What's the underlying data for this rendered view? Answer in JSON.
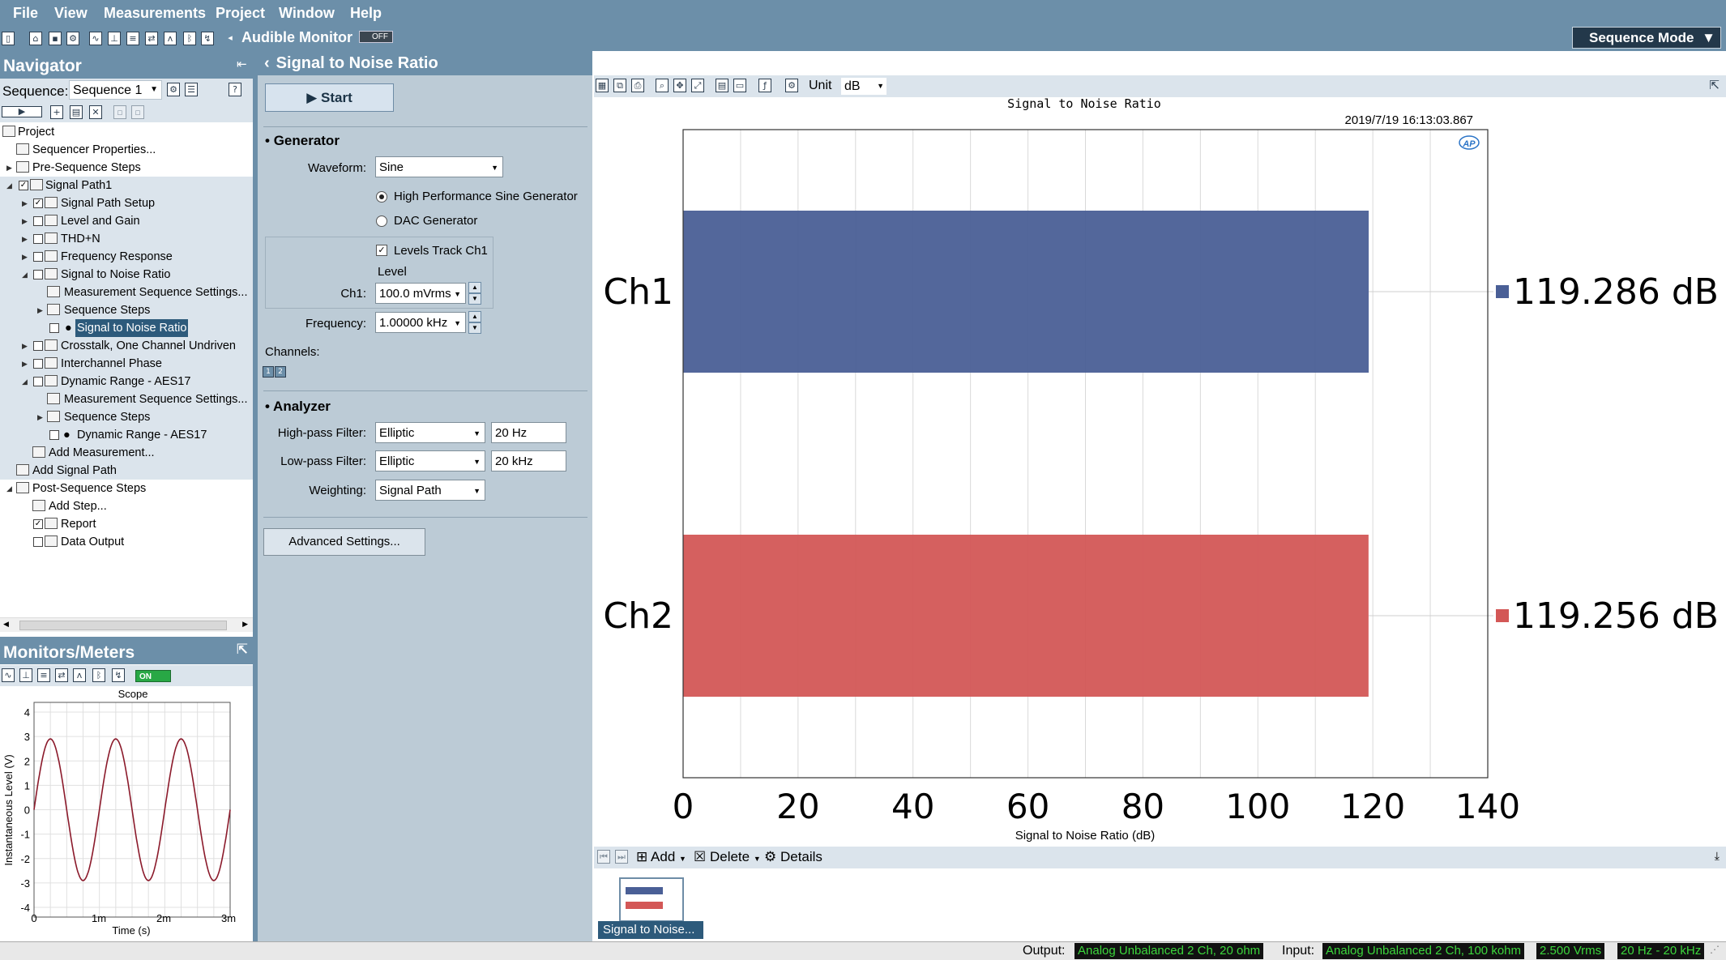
{
  "menu": {
    "items": [
      "File",
      "View",
      "Measurements",
      "Project",
      "Window",
      "Help"
    ]
  },
  "toolbar": {
    "audible_monitor_label": "Audible Monitor",
    "audible_toggle": "OFF",
    "mode_label": "Sequence Mode"
  },
  "navigator": {
    "title": "Navigator",
    "sequence_label": "Sequence:",
    "sequence_value": "Sequence 1",
    "tree": [
      {
        "label": "Project"
      },
      {
        "label": "Sequencer Properties..."
      },
      {
        "label": "Pre-Sequence Steps"
      },
      {
        "label": "Signal Path1"
      },
      {
        "label": "Signal Path Setup"
      },
      {
        "label": "Level and Gain"
      },
      {
        "label": "THD+N"
      },
      {
        "label": "Frequency Response"
      },
      {
        "label": "Signal to Noise Ratio"
      },
      {
        "label": "Measurement Sequence Settings..."
      },
      {
        "label": "Sequence Steps"
      },
      {
        "label": "Signal to Noise Ratio"
      },
      {
        "label": "Crosstalk, One Channel Undriven"
      },
      {
        "label": "Interchannel Phase"
      },
      {
        "label": "Dynamic Range - AES17"
      },
      {
        "label": "Measurement Sequence Settings..."
      },
      {
        "label": "Sequence Steps"
      },
      {
        "label": "Dynamic Range - AES17"
      },
      {
        "label": "Add Measurement..."
      },
      {
        "label": "Add Signal Path"
      },
      {
        "label": "Post-Sequence Steps"
      },
      {
        "label": "Add Step..."
      },
      {
        "label": "Report"
      },
      {
        "label": "Data Output"
      }
    ]
  },
  "monitors": {
    "title": "Monitors/Meters",
    "toggle": "ON",
    "scope": {
      "title": "Scope",
      "ylabel": "Instantaneous Level (V)",
      "xlabel": "Time (s)",
      "yticks": [
        "4",
        "3",
        "2",
        "1",
        "0",
        "-1",
        "-2",
        "-3",
        "-4"
      ],
      "xticks": [
        "0",
        "1m",
        "2m",
        "3m"
      ]
    }
  },
  "panel": {
    "title": "Signal to Noise Ratio",
    "start_label": "Start",
    "generator": {
      "title": "Generator",
      "waveform_label": "Waveform:",
      "waveform_value": "Sine",
      "radio1": "High Performance Sine Generator",
      "radio2": "DAC Generator",
      "levels_track": "Levels Track Ch1",
      "level_label": "Level",
      "ch1_label": "Ch1:",
      "ch1_value": "100.0 mVrms",
      "frequency_label": "Frequency:",
      "frequency_value": "1.00000 kHz",
      "channels_label": "Channels:"
    },
    "analyzer": {
      "title": "Analyzer",
      "hp_label": "High-pass Filter:",
      "hp_type": "Elliptic",
      "hp_value": "20 Hz",
      "lp_label": "Low-pass Filter:",
      "lp_type": "Elliptic",
      "lp_value": "20 kHz",
      "weighting_label": "Weighting:",
      "weighting_value": "Signal Path"
    },
    "advanced_label": "Advanced Settings..."
  },
  "graph_toolbar": {
    "unit_label": "Unit",
    "unit_value": "dB"
  },
  "graph_actions": {
    "add": "Add",
    "delete": "Delete",
    "details": "Details"
  },
  "thumbnail_label": "Signal to Noise...",
  "chart_data": {
    "type": "bar",
    "orientation": "horizontal",
    "title": "Signal to Noise Ratio",
    "timestamp": "2019/7/19 16:13:03.867",
    "xlabel": "Signal to Noise Ratio (dB)",
    "xlim": [
      0,
      140
    ],
    "xticks": [
      0,
      20,
      40,
      60,
      80,
      100,
      120,
      140
    ],
    "categories": [
      "Ch1",
      "Ch2"
    ],
    "values": [
      119.286,
      119.256
    ],
    "value_labels": [
      "119.286 dB",
      "119.256 dB"
    ],
    "colors": [
      "#4a5f96",
      "#d35756"
    ],
    "grid": true
  },
  "status": {
    "output_label": "Output:",
    "output_value": "Analog Unbalanced 2 Ch, 20 ohm",
    "input_label": "Input:",
    "input_value": "Analog Unbalanced 2 Ch, 100 kohm",
    "level_value": "2.500 Vrms",
    "bw_value": "20 Hz - 20 kHz"
  }
}
